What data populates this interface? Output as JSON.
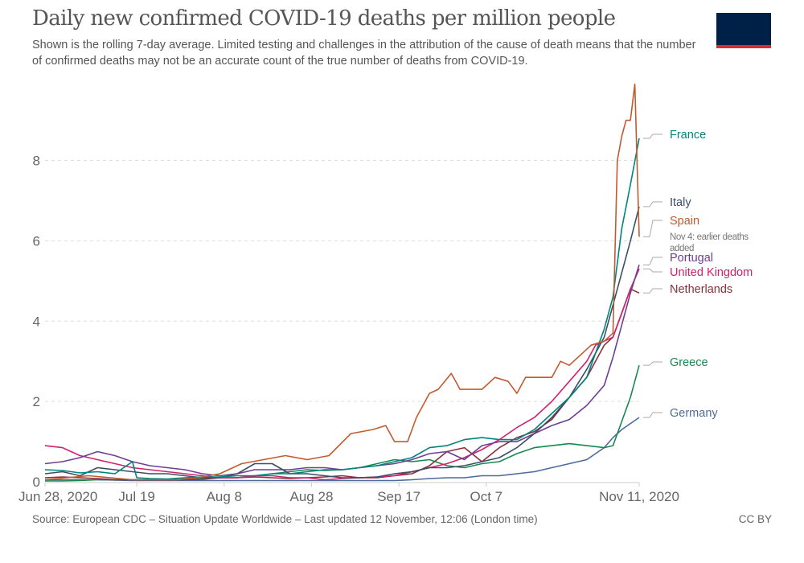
{
  "header": {
    "title": "Daily new confirmed COVID-19 deaths per million people",
    "subtitle": "Shown is the rolling 7-day average. Limited testing and challenges in the attribution of the cause of death means that the number of confirmed deaths may not be an accurate count of the true number of deaths from COVID-19.",
    "logo": {
      "colors": {
        "background": "#002147",
        "stripe": "#dc2d2d"
      }
    }
  },
  "footer": {
    "source": "Source: European CDC – Situation Update Worldwide – Last updated 12 November, 12:06 (London time)",
    "license": "CC BY"
  },
  "chart_data": {
    "type": "line",
    "title": "Daily new confirmed COVID-19 deaths per million people",
    "xlabel": "",
    "ylabel": "",
    "x_unit": "days since Jun 28, 2020",
    "xlim": [
      0,
      136
    ],
    "ylim": [
      0,
      10
    ],
    "grid": "horizontal dashed",
    "legend": "right (end-of-line labels)",
    "y_ticks": [
      {
        "value": 0,
        "label": "0"
      },
      {
        "value": 2,
        "label": "2"
      },
      {
        "value": 4,
        "label": "4"
      },
      {
        "value": 6,
        "label": "6"
      },
      {
        "value": 8,
        "label": "8"
      }
    ],
    "x_ticks": [
      {
        "value": 0,
        "label": "Jun 28, 2020"
      },
      {
        "value": 21,
        "label": "Jul 19"
      },
      {
        "value": 41,
        "label": "Aug 8"
      },
      {
        "value": 61,
        "label": "Aug 28"
      },
      {
        "value": 81,
        "label": "Sep 17"
      },
      {
        "value": 101,
        "label": "Oct 7"
      },
      {
        "value": 136,
        "label": "Nov 11, 2020"
      }
    ],
    "series": [
      {
        "name": "France",
        "label": "France",
        "color": "#00847e",
        "x": [
          0,
          4,
          8,
          12,
          16,
          20,
          21,
          24,
          28,
          32,
          36,
          40,
          44,
          48,
          52,
          56,
          60,
          64,
          68,
          72,
          76,
          80,
          84,
          88,
          92,
          96,
          100,
          104,
          108,
          112,
          116,
          120,
          124,
          126,
          128,
          130,
          132,
          134,
          136
        ],
        "y": [
          0.3,
          0.28,
          0.22,
          0.25,
          0.2,
          0.5,
          0.1,
          0.08,
          0.07,
          0.1,
          0.12,
          0.12,
          0.15,
          0.15,
          0.2,
          0.2,
          0.25,
          0.3,
          0.3,
          0.35,
          0.4,
          0.5,
          0.6,
          0.85,
          0.9,
          1.05,
          1.1,
          1.05,
          1.05,
          1.3,
          1.7,
          2.1,
          2.6,
          3.2,
          3.8,
          4.6,
          6.3,
          7.4,
          8.55
        ],
        "end_label_value": 8.55
      },
      {
        "name": "Italy",
        "label": "Italy",
        "color": "#4c6a9c",
        "x": [
          0,
          4,
          8,
          12,
          16,
          20,
          24,
          28,
          32,
          36,
          40,
          44,
          48,
          52,
          56,
          60,
          64,
          68,
          72,
          76,
          80,
          84,
          88,
          92,
          96,
          100,
          104,
          108,
          112,
          116,
          120,
          124,
          128,
          130,
          132,
          134,
          136
        ],
        "y": [
          0.2,
          0.25,
          0.15,
          0.35,
          0.3,
          0.25,
          0.2,
          0.2,
          0.15,
          0.1,
          0.1,
          0.2,
          0.45,
          0.45,
          0.2,
          0.2,
          0.15,
          0.1,
          0.1,
          0.12,
          0.2,
          0.25,
          0.35,
          0.35,
          0.4,
          0.5,
          0.6,
          0.85,
          1.2,
          1.6,
          2.1,
          2.8,
          3.6,
          4.4,
          5.2,
          6.0,
          6.85
        ],
        "end_label_value": 6.85,
        "display_color": "#3c4e66"
      },
      {
        "name": "Spain",
        "label": "Spain",
        "color": "#c15b2f",
        "x": [
          0,
          5,
          10,
          15,
          20,
          25,
          30,
          35,
          40,
          45,
          50,
          55,
          60,
          65,
          70,
          75,
          78,
          80,
          83,
          85,
          88,
          90,
          93,
          95,
          100,
          103,
          106,
          108,
          110,
          113,
          116,
          118,
          120,
          123,
          125,
          128,
          130,
          131,
          132,
          133,
          134,
          135,
          136
        ],
        "y": [
          0.05,
          0.1,
          0.15,
          0.1,
          0.05,
          0.05,
          0.05,
          0.1,
          0.2,
          0.45,
          0.55,
          0.65,
          0.55,
          0.65,
          1.2,
          1.3,
          1.4,
          1.0,
          1.0,
          1.6,
          2.2,
          2.3,
          2.7,
          2.3,
          2.3,
          2.6,
          2.5,
          2.2,
          2.6,
          2.6,
          2.6,
          3.0,
          2.9,
          3.2,
          3.4,
          3.5,
          3.7,
          8.0,
          8.6,
          9.0,
          9.0,
          9.9,
          6.1
        ],
        "end_label_value": 6.1,
        "annotation": "Nov 4: earlier deaths added"
      },
      {
        "name": "Portugal",
        "label": "Portugal",
        "color": "#6d3e91",
        "x": [
          0,
          4,
          8,
          12,
          16,
          20,
          24,
          28,
          32,
          36,
          40,
          44,
          48,
          52,
          56,
          60,
          64,
          68,
          72,
          76,
          80,
          84,
          88,
          92,
          96,
          100,
          104,
          108,
          112,
          116,
          120,
          124,
          128,
          130,
          132,
          134,
          136
        ],
        "y": [
          0.45,
          0.5,
          0.6,
          0.75,
          0.65,
          0.5,
          0.4,
          0.35,
          0.3,
          0.2,
          0.15,
          0.2,
          0.3,
          0.3,
          0.3,
          0.35,
          0.35,
          0.3,
          0.35,
          0.4,
          0.45,
          0.55,
          0.7,
          0.75,
          0.55,
          0.9,
          1.0,
          1.0,
          1.2,
          1.4,
          1.55,
          1.9,
          2.4,
          3.1,
          3.9,
          4.7,
          5.4
        ],
        "end_label_value": 5.4
      },
      {
        "name": "United Kingdom",
        "label": "United Kingdom",
        "color": "#d2216b",
        "x": [
          0,
          4,
          8,
          12,
          16,
          20,
          24,
          28,
          32,
          36,
          40,
          44,
          48,
          52,
          56,
          60,
          64,
          68,
          72,
          76,
          80,
          84,
          88,
          92,
          96,
          100,
          104,
          108,
          112,
          116,
          120,
          124,
          126,
          128,
          130,
          132,
          134,
          136
        ],
        "y": [
          0.9,
          0.85,
          0.65,
          0.55,
          0.45,
          0.35,
          0.3,
          0.25,
          0.2,
          0.15,
          0.1,
          0.1,
          0.15,
          0.15,
          0.1,
          0.1,
          0.05,
          0.08,
          0.1,
          0.12,
          0.15,
          0.25,
          0.35,
          0.45,
          0.6,
          0.8,
          1.05,
          1.35,
          1.6,
          2.0,
          2.5,
          3.0,
          3.4,
          3.5,
          3.6,
          4.2,
          4.8,
          5.3
        ],
        "end_label_value": 5.3
      },
      {
        "name": "Netherlands",
        "label": "Netherlands",
        "color": "#883039",
        "x": [
          0,
          4,
          8,
          12,
          16,
          20,
          24,
          28,
          32,
          36,
          40,
          44,
          48,
          52,
          56,
          60,
          64,
          68,
          72,
          76,
          80,
          84,
          88,
          92,
          96,
          100,
          104,
          108,
          112,
          116,
          120,
          124,
          128,
          130,
          132,
          134,
          136
        ],
        "y": [
          0.1,
          0.12,
          0.1,
          0.08,
          0.05,
          0.05,
          0.05,
          0.05,
          0.05,
          0.06,
          0.1,
          0.1,
          0.12,
          0.1,
          0.08,
          0.1,
          0.12,
          0.15,
          0.1,
          0.1,
          0.15,
          0.2,
          0.4,
          0.75,
          0.85,
          0.5,
          0.85,
          1.1,
          1.25,
          1.55,
          2.1,
          2.6,
          3.4,
          3.6,
          4.2,
          4.8,
          4.7
        ],
        "end_label_value": 4.7
      },
      {
        "name": "Greece",
        "label": "Greece",
        "color": "#18894e",
        "x": [
          0,
          4,
          8,
          12,
          16,
          20,
          24,
          28,
          32,
          36,
          40,
          44,
          48,
          52,
          56,
          60,
          64,
          68,
          72,
          76,
          80,
          84,
          88,
          92,
          96,
          100,
          104,
          108,
          112,
          116,
          120,
          124,
          128,
          130,
          132,
          134,
          136
        ],
        "y": [
          0.02,
          0.02,
          0.03,
          0.05,
          0.05,
          0.05,
          0.05,
          0.05,
          0.06,
          0.08,
          0.1,
          0.1,
          0.15,
          0.2,
          0.25,
          0.3,
          0.28,
          0.3,
          0.35,
          0.45,
          0.55,
          0.5,
          0.55,
          0.4,
          0.35,
          0.45,
          0.5,
          0.7,
          0.85,
          0.9,
          0.95,
          0.9,
          0.85,
          0.9,
          1.5,
          2.1,
          2.9
        ],
        "end_label_value": 2.9
      },
      {
        "name": "Germany",
        "label": "Germany",
        "color": "#4c6a9c",
        "x": [
          0,
          4,
          8,
          12,
          16,
          20,
          24,
          28,
          32,
          36,
          40,
          44,
          48,
          52,
          56,
          60,
          64,
          68,
          72,
          76,
          80,
          84,
          88,
          92,
          96,
          100,
          104,
          108,
          112,
          116,
          120,
          124,
          128,
          130,
          132,
          134,
          136
        ],
        "y": [
          0.05,
          0.05,
          0.05,
          0.05,
          0.04,
          0.03,
          0.03,
          0.03,
          0.03,
          0.03,
          0.03,
          0.03,
          0.03,
          0.03,
          0.03,
          0.03,
          0.03,
          0.03,
          0.03,
          0.03,
          0.03,
          0.05,
          0.08,
          0.1,
          0.1,
          0.15,
          0.15,
          0.2,
          0.25,
          0.35,
          0.45,
          0.55,
          0.85,
          1.1,
          1.3,
          1.45,
          1.6
        ],
        "end_label_value": 1.6,
        "display_color": "#4c6a9c"
      }
    ]
  }
}
